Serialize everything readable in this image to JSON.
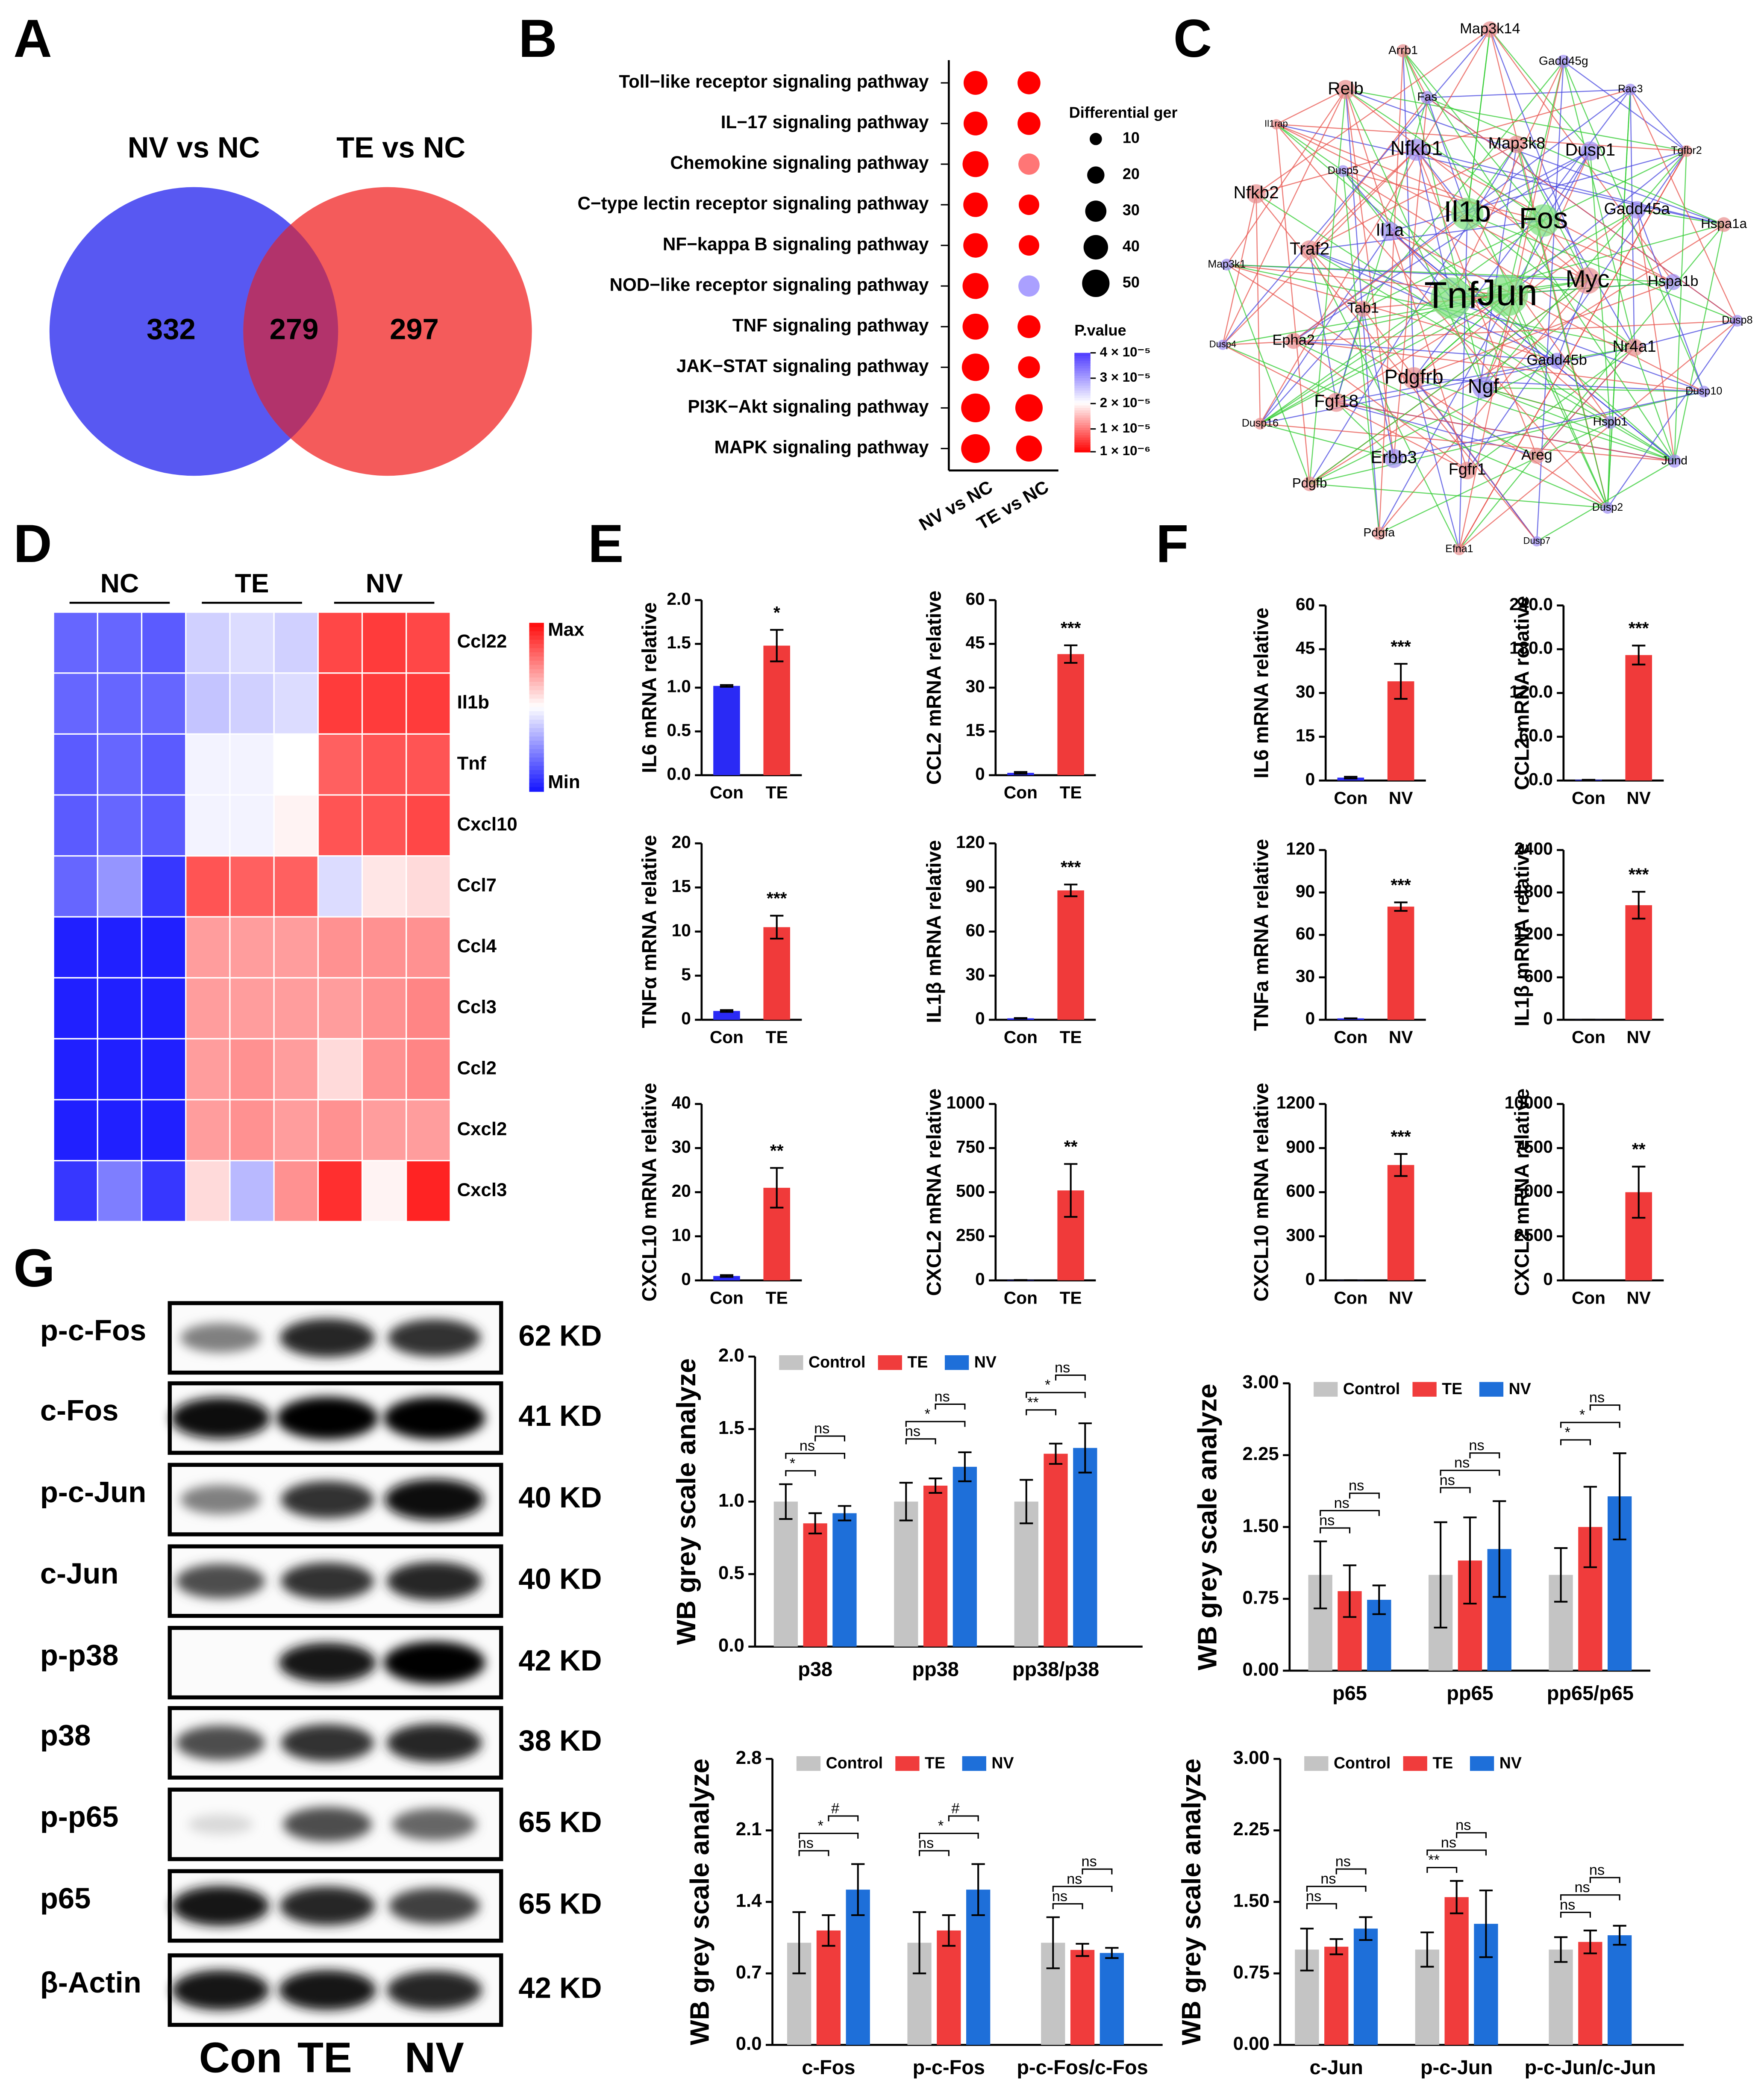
{
  "chart_data": [
    {
      "type": "venn",
      "label": "A",
      "sets": [
        "NV vs NC",
        "TE vs NC"
      ],
      "values": [
        332,
        279,
        297
      ],
      "colors": [
        "#5858f2",
        "#f45b5b",
        "#b2336b"
      ]
    },
    {
      "type": "dotplot",
      "label": "B",
      "categories": [
        "Toll−like receptor signaling pathway",
        "IL−17 signaling pathway",
        "Chemokine signaling pathway",
        "C−type lectin receptor signaling pathway",
        "NF−kappa B signaling pathway",
        "NOD−like receptor signaling pathway",
        "TNF signaling pathway",
        "JAK−STAT signaling pathway",
        "PI3K−Akt signaling pathway",
        "MAPK signaling pathway"
      ],
      "series": [
        {
          "name": "NV vs NC",
          "sizes": [
            38,
            38,
            45,
            40,
            40,
            45,
            45,
            50,
            55,
            55
          ],
          "pvalues": [
            1e-06,
            1e-06,
            1e-06,
            1e-06,
            1e-06,
            1e-06,
            1e-06,
            1e-06,
            1e-06,
            1e-06
          ]
        },
        {
          "name": "TE vs NC",
          "sizes": [
            35,
            35,
            30,
            28,
            28,
            30,
            35,
            32,
            50,
            45
          ],
          "pvalues": [
            1e-06,
            1e-06,
            1e-05,
            1e-06,
            1e-06,
            3e-05,
            1e-06,
            1e-06,
            1e-06,
            1e-06
          ]
        }
      ],
      "size_title": "Differential ger",
      "size_ticks": [
        10,
        20,
        30,
        40,
        50
      ],
      "color_title": "P.value",
      "pvalue_lim": [
        1e-06,
        4e-05
      ],
      "pvalue_ticks": [
        {
          "value": 4e-05,
          "label": "4 × 10⁻⁵"
        },
        {
          "value": 3e-05,
          "label": "3 × 10⁻⁵"
        },
        {
          "value": 2e-05,
          "label": "2 × 10⁻⁵"
        },
        {
          "value": 1e-05,
          "label": "1 × 10⁻⁵"
        },
        {
          "value": 1e-06,
          "label": "1 × 10⁻⁶"
        }
      ]
    },
    {
      "type": "network",
      "label": "C",
      "nodes": [
        "Map3k14",
        "Gadd45g",
        "Arrb1",
        "Rac3",
        "Relb",
        "Fas",
        "Il1rap",
        "Nfkb1",
        "Map3k8",
        "Dusp1",
        "Tgfbr2",
        "Dusp5",
        "Nfkb2",
        "Gadd45a",
        "Il1b",
        "Fos",
        "Hspa1a",
        "Il1a",
        "Traf2",
        "Map3k1",
        "Tnf",
        "Jun",
        "Myc",
        "Hspa1b",
        "Tab1",
        "Dusp8",
        "Epha2",
        "Dusp4",
        "Nr4a1",
        "Gadd45b",
        "Pdgfrb",
        "Ngf",
        "Fgf18",
        "Dusp10",
        "Dusp16",
        "Hspb1",
        "Areg",
        "Erbb3",
        "Fgfr1",
        "Jund",
        "Pdgfb",
        "Dusp2",
        "Pdgfa",
        "Dusp7",
        "Efna1"
      ]
    },
    {
      "type": "heatmap",
      "label": "D",
      "groups": [
        "NC",
        "TE",
        "NV"
      ],
      "rows": [
        "Ccl22",
        "Il1b",
        "Tnf",
        "Cxcl10",
        "Ccl7",
        "Ccl4",
        "Ccl3",
        "Ccl2",
        "Cxcl2",
        "Cxcl3"
      ],
      "values": [
        [
          -1.3,
          -1.3,
          -1.4,
          -0.4,
          -0.3,
          -0.4,
          1.5,
          1.6,
          1.5
        ],
        [
          -1.3,
          -1.3,
          -1.3,
          -0.5,
          -0.4,
          -0.3,
          1.6,
          1.6,
          1.6
        ],
        [
          -1.4,
          -1.3,
          -1.4,
          -0.1,
          -0.1,
          0,
          1.3,
          1.4,
          1.4
        ],
        [
          -1.4,
          -1.3,
          -1.4,
          -0.1,
          -0.1,
          0.1,
          1.4,
          1.4,
          1.5
        ],
        [
          -1.3,
          -0.9,
          -1.7,
          1.4,
          1.3,
          1.3,
          -0.3,
          0.2,
          0.3
        ],
        [
          -1.9,
          -1.9,
          -1.9,
          0.8,
          0.8,
          0.8,
          0.9,
          0.9,
          0.9
        ],
        [
          -1.9,
          -1.9,
          -1.9,
          0.8,
          0.8,
          0.8,
          0.8,
          0.9,
          1
        ],
        [
          -1.9,
          -1.9,
          -1.9,
          0.8,
          0.9,
          0.8,
          0.3,
          0.9,
          1
        ],
        [
          -1.9,
          -1.9,
          -1.9,
          0.8,
          0.9,
          0.8,
          0.9,
          0.8,
          0.8
        ],
        [
          -1.7,
          -1.1,
          -1.7,
          0.3,
          -0.6,
          0.9,
          1.7,
          0.1,
          1.8
        ]
      ],
      "clim": [
        -2,
        2
      ],
      "legend_max": "Max",
      "legend_min": "Min"
    },
    {
      "type": "bar",
      "label": "E",
      "ylabel": "IL6 mRNA relative",
      "categories": [
        "Con",
        "TE"
      ],
      "values": [
        1.02,
        1.48
      ],
      "errors": [
        0.01,
        0.18
      ],
      "colors": [
        "#2a2af5",
        "#f03a3a"
      ],
      "annotation": "*",
      "ylim": [
        0,
        2
      ],
      "yticks": [
        {
          "value": 0,
          "label": "0.0"
        },
        0.5,
        {
          "value": 1,
          "label": "1.0"
        },
        1.5,
        {
          "value": 2,
          "label": "2.0"
        }
      ]
    },
    {
      "type": "bar",
      "ylabel": "CCL2 mRNA relative",
      "categories": [
        "Con",
        "TE"
      ],
      "values": [
        0.8,
        41.5
      ],
      "errors": [
        0.3,
        3
      ],
      "colors": [
        "#2a2af5",
        "#f03a3a"
      ],
      "annotation": "***",
      "ylim": [
        0,
        60
      ],
      "yticks": [
        0,
        15,
        30,
        45,
        60
      ]
    },
    {
      "type": "bar",
      "ylabel": "TNFα mRNA relative",
      "categories": [
        "Con",
        "TE"
      ],
      "values": [
        1,
        10.5
      ],
      "errors": [
        0.1,
        1.3
      ],
      "colors": [
        "#2a2af5",
        "#f03a3a"
      ],
      "annotation": "***",
      "ylim": [
        0,
        20
      ],
      "yticks": [
        0,
        5,
        10,
        15,
        20
      ]
    },
    {
      "type": "bar",
      "ylabel": "IL1β mRNA relative",
      "categories": [
        "Con",
        "TE"
      ],
      "values": [
        1,
        88
      ],
      "errors": [
        0.2,
        4
      ],
      "colors": [
        "#2a2af5",
        "#f03a3a"
      ],
      "annotation": "***",
      "ylim": [
        0,
        120
      ],
      "yticks": [
        0,
        30,
        60,
        90,
        120
      ]
    },
    {
      "type": "bar",
      "ylabel": "CXCL10 mRNA relative",
      "categories": [
        "Con",
        "TE"
      ],
      "values": [
        1,
        21
      ],
      "errors": [
        0.2,
        4.5
      ],
      "colors": [
        "#2a2af5",
        "#f03a3a"
      ],
      "annotation": "**",
      "ylim": [
        0,
        40
      ],
      "yticks": [
        0,
        10,
        20,
        30,
        40
      ]
    },
    {
      "type": "bar",
      "ylabel": "CXCL2 mRNA relative",
      "categories": [
        "Con",
        "TE"
      ],
      "values": [
        2,
        510
      ],
      "errors": [
        0,
        150
      ],
      "colors": [
        "#2a2af5",
        "#f03a3a"
      ],
      "annotation": "**",
      "ylim": [
        0,
        1000
      ],
      "yticks": [
        0,
        250,
        500,
        750,
        1000
      ]
    },
    {
      "type": "bar",
      "label": "F",
      "ylabel": "IL6 mRNA relative",
      "categories": [
        "Con",
        "NV"
      ],
      "values": [
        1,
        34
      ],
      "errors": [
        0.3,
        6
      ],
      "colors": [
        "#2a2af5",
        "#f03a3a"
      ],
      "annotation": "***",
      "ylim": [
        0,
        60
      ],
      "yticks": [
        0,
        15,
        30,
        45,
        60
      ]
    },
    {
      "type": "bar",
      "ylabel": "CCL2 mRNA relative",
      "categories": [
        "Con",
        "NV"
      ],
      "values": [
        1,
        172
      ],
      "errors": [
        0,
        13
      ],
      "colors": [
        "#2a2af5",
        "#f03a3a"
      ],
      "annotation": "***",
      "ylim": [
        0,
        240
      ],
      "yticks": [
        {
          "value": 0,
          "label": "0.0"
        },
        {
          "value": 60,
          "label": "60.0"
        },
        {
          "value": 120,
          "label": "120.0"
        },
        {
          "value": 180,
          "label": "180.0"
        },
        {
          "value": 240,
          "label": "240.0"
        }
      ]
    },
    {
      "type": "bar",
      "ylabel": "TNFa mRNA relative",
      "categories": [
        "Con",
        "NV"
      ],
      "values": [
        1,
        80
      ],
      "errors": [
        0,
        3
      ],
      "colors": [
        "#2a2af5",
        "#f03a3a"
      ],
      "annotation": "***",
      "ylim": [
        0,
        120
      ],
      "yticks": [
        0,
        30,
        60,
        90,
        120
      ]
    },
    {
      "type": "bar",
      "ylabel": "IL1β mRNA relative",
      "categories": [
        "Con",
        "NV"
      ],
      "values": [
        1,
        1620
      ],
      "errors": [
        0,
        190
      ],
      "colors": [
        "#2a2af5",
        "#f03a3a"
      ],
      "annotation": "***",
      "ylim": [
        0,
        2400
      ],
      "yticks": [
        0,
        600,
        1200,
        1800,
        2400
      ]
    },
    {
      "type": "bar",
      "ylabel": "CXCL10 mRNA relative",
      "categories": [
        "Con",
        "NV"
      ],
      "values": [
        1,
        785
      ],
      "errors": [
        0,
        75
      ],
      "colors": [
        "#2a2af5",
        "#f03a3a"
      ],
      "annotation": "***",
      "ylim": [
        0,
        1200
      ],
      "yticks": [
        0,
        300,
        600,
        900,
        1200
      ]
    },
    {
      "type": "bar",
      "ylabel": "CXCL2 mRNA relative",
      "categories": [
        "Con",
        "NV"
      ],
      "values": [
        1,
        5000
      ],
      "errors": [
        0,
        1450
      ],
      "colors": [
        "#2a2af5",
        "#f03a3a"
      ],
      "annotation": "**",
      "ylim": [
        0,
        10000
      ],
      "yticks": [
        0,
        2500,
        5000,
        7500,
        10000
      ]
    },
    {
      "type": "blot",
      "label": "G",
      "proteins": [
        "p-c-Fos",
        "c-Fos",
        "p-c-Jun",
        "c-Jun",
        "p-p38",
        "p38",
        "p-p65",
        "p65",
        "β-Actin"
      ],
      "sizes": [
        "62 KD",
        "41 KD",
        "40 KD",
        "40 KD",
        "42 KD",
        "38 KD",
        "65 KD",
        "65 KD",
        "42 KD"
      ],
      "lanes": [
        "Con",
        "TE",
        "NV"
      ]
    },
    {
      "type": "grouped_bar",
      "ylabel": "WB grey scale analyze",
      "categories": [
        "p38",
        "pp38",
        "pp38/p38"
      ],
      "series": [
        {
          "name": "Control",
          "color": "#c4c4c4",
          "values": [
            1,
            1,
            1
          ],
          "errors": [
            0.12,
            0.13,
            0.15
          ]
        },
        {
          "name": "TE",
          "color": "#f03c3c",
          "values": [
            0.85,
            1.11,
            1.33
          ],
          "errors": [
            0.07,
            0.05,
            0.07
          ]
        },
        {
          "name": "NV",
          "color": "#1e6fd9",
          "values": [
            0.92,
            1.24,
            1.37
          ],
          "errors": [
            0.05,
            0.1,
            0.17
          ]
        }
      ],
      "significance": [
        [
          "*",
          "ns",
          "ns"
        ],
        [
          "ns",
          "*",
          "ns"
        ],
        [
          "**",
          "*",
          "ns"
        ]
      ],
      "ylim": [
        0,
        2
      ],
      "yticks": [
        {
          "value": 0,
          "label": "0.0"
        },
        0.5,
        {
          "value": 1,
          "label": "1.0"
        },
        1.5,
        {
          "value": 2,
          "label": "2.0"
        }
      ]
    },
    {
      "type": "grouped_bar",
      "ylabel": "WB grey scale analyze",
      "categories": [
        "p65",
        "pp65",
        "pp65/p65"
      ],
      "series": [
        {
          "name": "Control",
          "color": "#c4c4c4",
          "values": [
            1,
            1,
            1
          ],
          "errors": [
            0.35,
            0.55,
            0.28
          ]
        },
        {
          "name": "TE",
          "color": "#f03c3c",
          "values": [
            0.83,
            1.15,
            1.5
          ],
          "errors": [
            0.27,
            0.45,
            0.42
          ]
        },
        {
          "name": "NV",
          "color": "#1e6fd9",
          "values": [
            0.74,
            1.27,
            1.82
          ],
          "errors": [
            0.15,
            0.5,
            0.45
          ]
        }
      ],
      "significance": [
        [
          "ns",
          "ns",
          "ns"
        ],
        [
          "ns",
          "ns",
          "ns"
        ],
        [
          "*",
          "*",
          "ns"
        ]
      ],
      "ylim": [
        0,
        3
      ],
      "yticks": [
        {
          "value": 0,
          "label": "0.00"
        },
        0.75,
        {
          "value": 1.5,
          "label": "1.50"
        },
        2.25,
        {
          "value": 3,
          "label": "3.00"
        }
      ]
    },
    {
      "type": "grouped_bar",
      "ylabel": "WB grey scale analyze",
      "categories": [
        "c-Fos",
        "p-c-Fos",
        "p-c-Fos/c-Fos"
      ],
      "series": [
        {
          "name": "Control",
          "color": "#c4c4c4",
          "values": [
            1,
            1,
            1
          ],
          "errors": [
            0.3,
            0.3,
            0.25
          ]
        },
        {
          "name": "TE",
          "color": "#f03c3c",
          "values": [
            1.12,
            1.12,
            0.93
          ],
          "errors": [
            0.15,
            0.15,
            0.06
          ]
        },
        {
          "name": "NV",
          "color": "#1e6fd9",
          "values": [
            1.52,
            1.52,
            0.9
          ],
          "errors": [
            0.25,
            0.25,
            0.05
          ]
        }
      ],
      "significance": [
        [
          "ns",
          "*",
          "#"
        ],
        [
          "ns",
          "*",
          "#"
        ],
        [
          "ns",
          "ns",
          "ns"
        ]
      ],
      "ylim": [
        0,
        2.8
      ],
      "yticks": [
        {
          "value": 0,
          "label": "0.0"
        },
        0.7,
        1.4,
        2.1,
        2.8
      ]
    },
    {
      "type": "grouped_bar",
      "ylabel": "WB grey scale analyze",
      "categories": [
        "c-Jun",
        "p-c-Jun",
        "p-c-Jun/c-Jun"
      ],
      "series": [
        {
          "name": "Control",
          "color": "#c4c4c4",
          "values": [
            1,
            1,
            1
          ],
          "errors": [
            0.22,
            0.18,
            0.13
          ]
        },
        {
          "name": "TE",
          "color": "#f03c3c",
          "values": [
            1.03,
            1.55,
            1.08
          ],
          "errors": [
            0.08,
            0.17,
            0.12
          ]
        },
        {
          "name": "NV",
          "color": "#1e6fd9",
          "values": [
            1.22,
            1.27,
            1.15
          ],
          "errors": [
            0.12,
            0.35,
            0.1
          ]
        }
      ],
      "significance": [
        [
          "ns",
          "ns",
          "ns"
        ],
        [
          "**",
          "ns",
          "ns"
        ],
        [
          "ns",
          "ns",
          "ns"
        ]
      ],
      "ylim": [
        0,
        3
      ],
      "yticks": [
        {
          "value": 0,
          "label": "0.00"
        },
        0.75,
        {
          "value": 1.5,
          "label": "1.50"
        },
        2.25,
        {
          "value": 3,
          "label": "3.00"
        }
      ]
    }
  ]
}
